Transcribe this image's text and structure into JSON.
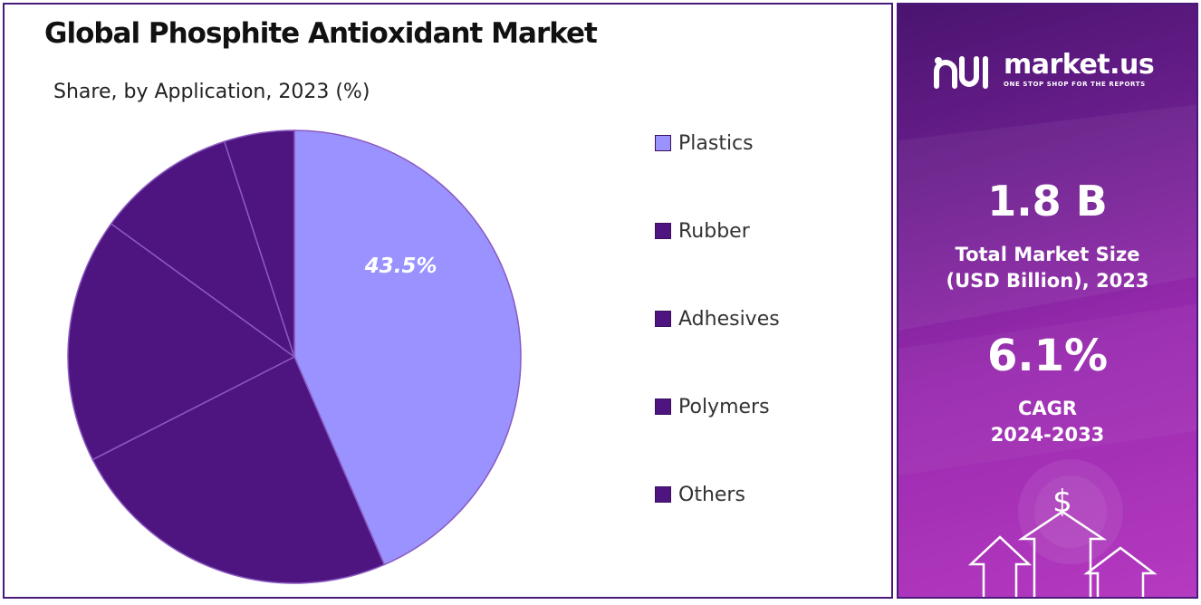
{
  "header": {
    "title": "Global Phosphite Antioxidant Market",
    "subtitle": "Share, by Application, 2023 (%)"
  },
  "chart_data": {
    "type": "pie",
    "title": "Global Phosphite Antioxidant Market",
    "subtitle": "Share, by Application, 2023 (%)",
    "categories": [
      "Plastics",
      "Rubber",
      "Adhesives",
      "Polymers",
      "Others"
    ],
    "values": [
      43.5,
      24.0,
      17.5,
      10.0,
      5.0
    ],
    "colors": [
      "#9a92ff",
      "#4e1580",
      "#4e1580",
      "#4e1580",
      "#4e1580"
    ],
    "data_labels": [
      {
        "category": "Plastics",
        "text": "43.5%"
      }
    ],
    "legend_position": "right",
    "start_angle_deg": 0,
    "direction": "clockwise"
  },
  "legend": {
    "items": [
      {
        "label": "Plastics",
        "color": "#9a92ff"
      },
      {
        "label": "Rubber",
        "color": "#4e1580"
      },
      {
        "label": "Adhesives",
        "color": "#4e1580"
      },
      {
        "label": "Polymers",
        "color": "#4e1580"
      },
      {
        "label": "Others",
        "color": "#4e1580"
      }
    ]
  },
  "sidebar": {
    "brand": {
      "name": "market.us",
      "tagline": "ONE STOP SHOP FOR THE REPORTS",
      "icon": "market-us-logo-icon"
    },
    "market_size": {
      "value": "1.8 B",
      "label_line1": "Total Market Size",
      "label_line2": "(USD Billion), 2023"
    },
    "cagr": {
      "value": "6.1%",
      "label_line1": "CAGR",
      "label_line2": "2024-2033"
    },
    "decoration": {
      "icon": "dollar-growth-arrows-icon",
      "symbol": "$"
    },
    "colors": {
      "gradient_start": "#4a1470",
      "gradient_end": "#b53ac0",
      "text": "#ffffff"
    }
  },
  "theme": {
    "border": "#4a1a7a",
    "pie_dark": "#4e1580",
    "pie_light": "#9a92ff",
    "slice_stroke": "#8a5ac0"
  }
}
